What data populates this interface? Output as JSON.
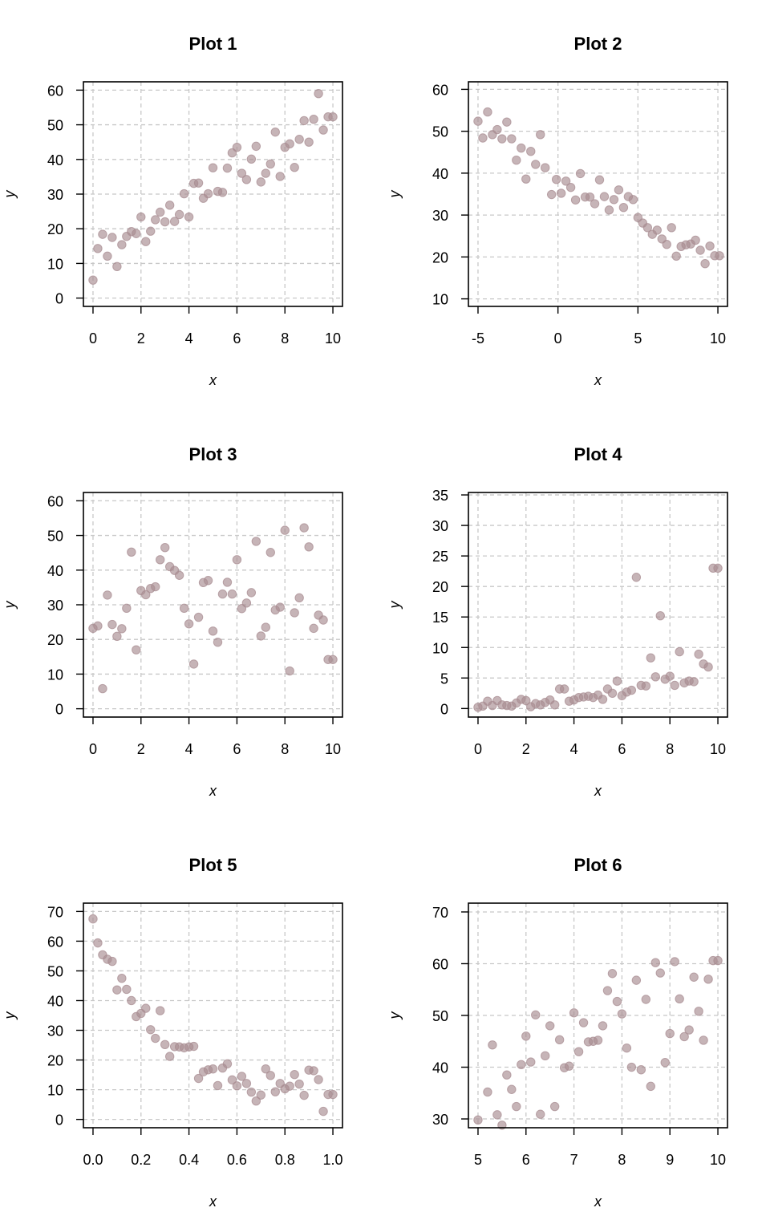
{
  "chart_data": [
    {
      "type": "scatter",
      "title": "Plot 1",
      "xlabel": "x",
      "ylabel": "y",
      "xlim": [
        -0.4,
        10.4
      ],
      "ylim": [
        -2.4,
        62.4
      ],
      "xticks": [
        0,
        2,
        4,
        6,
        8,
        10
      ],
      "xtick_labels": [
        "0",
        "2",
        "4",
        "6",
        "8",
        "10"
      ],
      "yticks": [
        0,
        10,
        20,
        30,
        40,
        50,
        60
      ],
      "ytick_labels": [
        "0",
        "10",
        "20",
        "30",
        "40",
        "50",
        "60"
      ],
      "grid": true,
      "x": [
        0,
        0.2,
        0.4,
        0.6,
        0.8,
        1.0,
        1.2,
        1.4,
        1.6,
        1.8,
        2.0,
        2.2,
        2.4,
        2.6,
        2.8,
        3.0,
        3.2,
        3.4,
        3.6,
        3.8,
        4.0,
        4.2,
        4.4,
        4.6,
        4.8,
        5.0,
        5.2,
        5.4,
        5.6,
        5.8,
        6.0,
        6.2,
        6.4,
        6.6,
        6.8,
        7.0,
        7.2,
        7.4,
        7.6,
        7.8,
        8.0,
        8.2,
        8.4,
        8.6,
        8.8,
        9.0,
        9.2,
        9.4,
        9.6,
        9.8,
        10.0
      ],
      "y": [
        5.2,
        14.3,
        18.4,
        12.1,
        17.5,
        9.1,
        15.4,
        17.8,
        19.2,
        18.6,
        23.4,
        16.3,
        19.3,
        22.6,
        24.8,
        22.0,
        26.8,
        22.1,
        24.1,
        30.1,
        23.4,
        33.1,
        33.2,
        28.8,
        30.1,
        37.6,
        30.8,
        30.5,
        37.5,
        41.9,
        43.5,
        36.0,
        34.2,
        40.1,
        43.8,
        33.5,
        36.0,
        38.7,
        47.9,
        35.1,
        43.5,
        44.5,
        37.7,
        45.8,
        51.2,
        45.0,
        51.6,
        59.0,
        48.5,
        52.3,
        52.3
      ]
    },
    {
      "type": "scatter",
      "title": "Plot 2",
      "xlabel": "x",
      "ylabel": "y",
      "xlim": [
        -5.6,
        10.6
      ],
      "ylim": [
        8.2,
        61.8
      ],
      "xticks": [
        -5,
        0,
        5,
        10
      ],
      "xtick_labels": [
        "-5",
        "0",
        "5",
        "10"
      ],
      "yticks": [
        10,
        20,
        30,
        40,
        50,
        60
      ],
      "ytick_labels": [
        "10",
        "20",
        "30",
        "40",
        "50",
        "60"
      ],
      "grid": true,
      "x": [
        -5.0,
        -4.7,
        -4.4,
        -4.1,
        -3.8,
        -3.5,
        -3.2,
        -2.9,
        -2.6,
        -2.3,
        -2.0,
        -1.7,
        -1.4,
        -1.1,
        -0.8,
        -0.4,
        -0.1,
        0.2,
        0.5,
        0.8,
        1.1,
        1.4,
        1.7,
        2.0,
        2.3,
        2.6,
        2.9,
        3.2,
        3.5,
        3.8,
        4.1,
        4.4,
        4.7,
        5.0,
        5.3,
        5.6,
        5.9,
        6.2,
        6.5,
        6.8,
        7.1,
        7.4,
        7.7,
        8.0,
        8.3,
        8.6,
        8.9,
        9.2,
        9.5,
        9.8,
        10.1
      ],
      "y": [
        52.4,
        48.4,
        54.6,
        49.2,
        50.4,
        48.2,
        52.2,
        48.2,
        43.1,
        46.0,
        38.6,
        45.2,
        42.1,
        49.2,
        41.3,
        34.9,
        38.5,
        35.2,
        38.1,
        36.6,
        33.6,
        39.9,
        34.3,
        34.3,
        32.7,
        38.4,
        34.4,
        31.2,
        33.7,
        36.0,
        31.8,
        34.4,
        33.7,
        29.4,
        28.1,
        27.0,
        25.4,
        26.4,
        24.3,
        23.0,
        27.0,
        20.2,
        22.5,
        22.9,
        23.1,
        24.0,
        21.6,
        18.4,
        22.6,
        20.3,
        20.3
      ]
    },
    {
      "type": "scatter",
      "title": "Plot 3",
      "xlabel": "x",
      "ylabel": "y",
      "xlim": [
        -0.4,
        10.4
      ],
      "ylim": [
        -2.4,
        62.4
      ],
      "xticks": [
        0,
        2,
        4,
        6,
        8,
        10
      ],
      "xtick_labels": [
        "0",
        "2",
        "4",
        "6",
        "8",
        "10"
      ],
      "yticks": [
        0,
        10,
        20,
        30,
        40,
        50,
        60
      ],
      "ytick_labels": [
        "0",
        "10",
        "20",
        "30",
        "40",
        "50",
        "60"
      ],
      "grid": true,
      "x": [
        0,
        0.2,
        0.4,
        0.6,
        0.8,
        1.0,
        1.2,
        1.4,
        1.6,
        1.8,
        2.0,
        2.2,
        2.4,
        2.6,
        2.8,
        3.0,
        3.2,
        3.4,
        3.6,
        3.8,
        4.0,
        4.2,
        4.4,
        4.6,
        4.8,
        5.0,
        5.2,
        5.4,
        5.6,
        5.8,
        6.0,
        6.2,
        6.4,
        6.6,
        6.8,
        7.0,
        7.2,
        7.4,
        7.6,
        7.8,
        8.0,
        8.2,
        8.4,
        8.6,
        8.8,
        9.0,
        9.2,
        9.4,
        9.6,
        9.8,
        10.0
      ],
      "y": [
        23.2,
        23.9,
        5.8,
        32.8,
        24.3,
        20.9,
        23.1,
        29.0,
        45.2,
        17.0,
        34.1,
        32.9,
        34.7,
        35.2,
        43.0,
        46.5,
        41.0,
        39.9,
        38.5,
        29.0,
        24.5,
        12.9,
        26.4,
        36.4,
        37.0,
        22.4,
        19.2,
        33.1,
        36.5,
        33.1,
        43.0,
        28.9,
        30.5,
        33.5,
        48.3,
        21.0,
        23.5,
        45.1,
        28.5,
        29.3,
        51.5,
        10.9,
        27.7,
        32.0,
        52.2,
        46.7,
        23.2,
        27.0,
        25.6,
        14.2,
        14.2
      ]
    },
    {
      "type": "scatter",
      "title": "Plot 4",
      "xlabel": "x",
      "ylabel": "y",
      "xlim": [
        -0.4,
        10.4
      ],
      "ylim": [
        -1.4,
        35.4
      ],
      "xticks": [
        0,
        2,
        4,
        6,
        8,
        10
      ],
      "xtick_labels": [
        "0",
        "2",
        "4",
        "6",
        "8",
        "10"
      ],
      "yticks": [
        0,
        5,
        10,
        15,
        20,
        25,
        30,
        35
      ],
      "ytick_labels": [
        "0",
        "5",
        "10",
        "15",
        "20",
        "25",
        "30",
        "35"
      ],
      "grid": true,
      "x": [
        0,
        0.2,
        0.4,
        0.6,
        0.8,
        1.0,
        1.2,
        1.4,
        1.6,
        1.8,
        2.0,
        2.2,
        2.4,
        2.6,
        2.8,
        3.0,
        3.2,
        3.4,
        3.6,
        3.8,
        4.0,
        4.2,
        4.4,
        4.6,
        4.8,
        5.0,
        5.2,
        5.4,
        5.6,
        5.8,
        6.0,
        6.2,
        6.4,
        6.6,
        6.8,
        7.0,
        7.2,
        7.4,
        7.6,
        7.8,
        8.0,
        8.2,
        8.4,
        8.6,
        8.8,
        9.0,
        9.2,
        9.4,
        9.6,
        9.8,
        10.0
      ],
      "y": [
        0.2,
        0.4,
        1.2,
        0.5,
        1.3,
        0.6,
        0.5,
        0.4,
        0.9,
        1.5,
        1.3,
        0.3,
        0.8,
        0.6,
        1.0,
        1.4,
        0.6,
        3.2,
        3.2,
        1.2,
        1.4,
        1.8,
        1.9,
        2.0,
        1.8,
        2.2,
        1.5,
        3.2,
        2.5,
        4.5,
        2.1,
        2.7,
        3.0,
        21.5,
        3.8,
        3.7,
        8.3,
        5.2,
        15.2,
        4.8,
        5.3,
        3.8,
        9.3,
        4.2,
        4.5,
        4.4,
        8.9,
        7.3,
        6.8,
        23.0,
        23.0
      ]
    },
    {
      "type": "scatter",
      "title": "Plot 5",
      "xlabel": "x",
      "ylabel": "y",
      "xlim": [
        -0.04,
        1.04
      ],
      "ylim": [
        -2.8,
        72.8
      ],
      "xticks": [
        0,
        0.2,
        0.4,
        0.6,
        0.8,
        1.0
      ],
      "xtick_labels": [
        "0.0",
        "0.2",
        "0.4",
        "0.6",
        "0.8",
        "1.0"
      ],
      "yticks": [
        0,
        10,
        20,
        30,
        40,
        50,
        60,
        70
      ],
      "ytick_labels": [
        "0",
        "10",
        "20",
        "30",
        "40",
        "50",
        "60",
        "70"
      ],
      "grid": true,
      "x": [
        0,
        0.02,
        0.04,
        0.06,
        0.08,
        0.1,
        0.12,
        0.14,
        0.16,
        0.18,
        0.2,
        0.22,
        0.24,
        0.26,
        0.28,
        0.3,
        0.32,
        0.34,
        0.36,
        0.38,
        0.4,
        0.42,
        0.44,
        0.46,
        0.48,
        0.5,
        0.52,
        0.54,
        0.56,
        0.58,
        0.6,
        0.62,
        0.64,
        0.66,
        0.68,
        0.7,
        0.72,
        0.74,
        0.76,
        0.78,
        0.8,
        0.82,
        0.84,
        0.86,
        0.88,
        0.9,
        0.92,
        0.94,
        0.96,
        0.98,
        1.0
      ],
      "y": [
        67.5,
        59.4,
        55.4,
        53.9,
        53.2,
        43.6,
        47.5,
        43.8,
        40.0,
        34.6,
        35.7,
        37.4,
        30.2,
        27.3,
        36.6,
        25.2,
        21.2,
        24.5,
        24.4,
        24.1,
        24.4,
        24.6,
        13.8,
        16.0,
        16.7,
        17.0,
        11.4,
        17.3,
        18.7,
        13.3,
        11.3,
        14.5,
        12.1,
        9.2,
        6.2,
        8.2,
        17.0,
        14.8,
        9.3,
        12.1,
        10.3,
        11.2,
        15.1,
        11.9,
        8.1,
        16.6,
        16.4,
        13.4,
        2.7,
        8.4,
        8.4
      ]
    },
    {
      "type": "scatter",
      "title": "Plot 6",
      "xlabel": "x",
      "ylabel": "y",
      "xlim": [
        4.8,
        10.2
      ],
      "ylim": [
        28.3,
        71.7
      ],
      "xticks": [
        5,
        6,
        7,
        8,
        9,
        10
      ],
      "xtick_labels": [
        "5",
        "6",
        "7",
        "8",
        "9",
        "10"
      ],
      "yticks": [
        30,
        40,
        50,
        60,
        70
      ],
      "ytick_labels": [
        "30",
        "40",
        "50",
        "60",
        "70"
      ],
      "grid": true,
      "x": [
        5.0,
        5.2,
        5.3,
        5.4,
        5.5,
        5.6,
        5.7,
        5.8,
        5.9,
        6.0,
        6.1,
        6.2,
        6.3,
        6.4,
        6.5,
        6.6,
        6.7,
        6.8,
        6.9,
        7.0,
        7.1,
        7.2,
        7.3,
        7.4,
        7.5,
        7.6,
        7.7,
        7.8,
        7.9,
        8.0,
        8.1,
        8.2,
        8.3,
        8.4,
        8.5,
        8.6,
        8.7,
        8.8,
        8.9,
        9.0,
        9.1,
        9.2,
        9.3,
        9.4,
        9.5,
        9.6,
        9.7,
        9.8,
        9.9,
        10.0
      ],
      "y": [
        29.8,
        35.2,
        44.3,
        30.8,
        28.8,
        38.5,
        35.7,
        32.4,
        40.5,
        46.0,
        41.0,
        50.1,
        30.9,
        42.2,
        48.0,
        32.4,
        45.3,
        39.9,
        40.2,
        50.5,
        43.0,
        48.6,
        44.9,
        45.0,
        45.2,
        48.0,
        54.8,
        58.1,
        52.7,
        50.3,
        43.7,
        40.0,
        56.8,
        39.5,
        53.1,
        36.3,
        60.2,
        58.2,
        40.9,
        46.5,
        60.4,
        53.2,
        45.9,
        47.2,
        57.4,
        50.8,
        45.2,
        57.0,
        60.6,
        60.6
      ]
    }
  ]
}
